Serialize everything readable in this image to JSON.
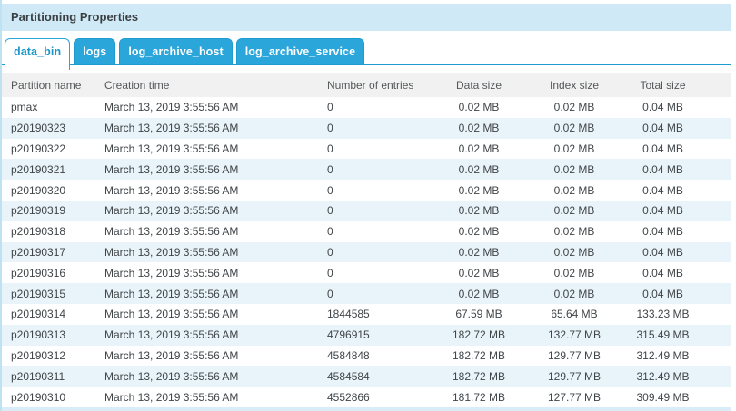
{
  "panel": {
    "title": "Partitioning Properties"
  },
  "tabs": [
    {
      "label": "data_bin",
      "active": true
    },
    {
      "label": "logs",
      "active": false
    },
    {
      "label": "log_archive_host",
      "active": false
    },
    {
      "label": "log_archive_service",
      "active": false
    }
  ],
  "table": {
    "columns": [
      {
        "key": "name",
        "label": "Partition name"
      },
      {
        "key": "creation",
        "label": "Creation time"
      },
      {
        "key": "entries",
        "label": "Number of entries"
      },
      {
        "key": "data_size",
        "label": "Data size"
      },
      {
        "key": "index_size",
        "label": "Index size"
      },
      {
        "key": "total_size",
        "label": "Total size"
      }
    ],
    "rows": [
      {
        "name": "pmax",
        "creation": "March 13, 2019 3:55:56 AM",
        "entries": "0",
        "data_size": "0.02 MB",
        "index_size": "0.02 MB",
        "total_size": "0.04 MB"
      },
      {
        "name": "p20190323",
        "creation": "March 13, 2019 3:55:56 AM",
        "entries": "0",
        "data_size": "0.02 MB",
        "index_size": "0.02 MB",
        "total_size": "0.04 MB"
      },
      {
        "name": "p20190322",
        "creation": "March 13, 2019 3:55:56 AM",
        "entries": "0",
        "data_size": "0.02 MB",
        "index_size": "0.02 MB",
        "total_size": "0.04 MB"
      },
      {
        "name": "p20190321",
        "creation": "March 13, 2019 3:55:56 AM",
        "entries": "0",
        "data_size": "0.02 MB",
        "index_size": "0.02 MB",
        "total_size": "0.04 MB"
      },
      {
        "name": "p20190320",
        "creation": "March 13, 2019 3:55:56 AM",
        "entries": "0",
        "data_size": "0.02 MB",
        "index_size": "0.02 MB",
        "total_size": "0.04 MB"
      },
      {
        "name": "p20190319",
        "creation": "March 13, 2019 3:55:56 AM",
        "entries": "0",
        "data_size": "0.02 MB",
        "index_size": "0.02 MB",
        "total_size": "0.04 MB"
      },
      {
        "name": "p20190318",
        "creation": "March 13, 2019 3:55:56 AM",
        "entries": "0",
        "data_size": "0.02 MB",
        "index_size": "0.02 MB",
        "total_size": "0.04 MB"
      },
      {
        "name": "p20190317",
        "creation": "March 13, 2019 3:55:56 AM",
        "entries": "0",
        "data_size": "0.02 MB",
        "index_size": "0.02 MB",
        "total_size": "0.04 MB"
      },
      {
        "name": "p20190316",
        "creation": "March 13, 2019 3:55:56 AM",
        "entries": "0",
        "data_size": "0.02 MB",
        "index_size": "0.02 MB",
        "total_size": "0.04 MB"
      },
      {
        "name": "p20190315",
        "creation": "March 13, 2019 3:55:56 AM",
        "entries": "0",
        "data_size": "0.02 MB",
        "index_size": "0.02 MB",
        "total_size": "0.04 MB"
      },
      {
        "name": "p20190314",
        "creation": "March 13, 2019 3:55:56 AM",
        "entries": "1844585",
        "data_size": "67.59 MB",
        "index_size": "65.64 MB",
        "total_size": "133.23 MB"
      },
      {
        "name": "p20190313",
        "creation": "March 13, 2019 3:55:56 AM",
        "entries": "4796915",
        "data_size": "182.72 MB",
        "index_size": "132.77 MB",
        "total_size": "315.49 MB"
      },
      {
        "name": "p20190312",
        "creation": "March 13, 2019 3:55:56 AM",
        "entries": "4584848",
        "data_size": "182.72 MB",
        "index_size": "129.77 MB",
        "total_size": "312.49 MB"
      },
      {
        "name": "p20190311",
        "creation": "March 13, 2019 3:55:56 AM",
        "entries": "4584584",
        "data_size": "182.72 MB",
        "index_size": "129.77 MB",
        "total_size": "312.49 MB"
      },
      {
        "name": "p20190310",
        "creation": "March 13, 2019 3:55:56 AM",
        "entries": "4552866",
        "data_size": "181.72 MB",
        "index_size": "127.77 MB",
        "total_size": "309.49 MB"
      }
    ]
  },
  "colors": {
    "title_band_bg": "#cfe9f6",
    "tab_bg": "#2aa6da",
    "tab_line": "#1e9cd0",
    "active_tab_text": "#1b96c8",
    "header_bg": "#f1f1f1",
    "row_stripe": "#e9f4fa",
    "left_border": "#bfe2f2",
    "bottom_strip": "#d9ecf7"
  }
}
